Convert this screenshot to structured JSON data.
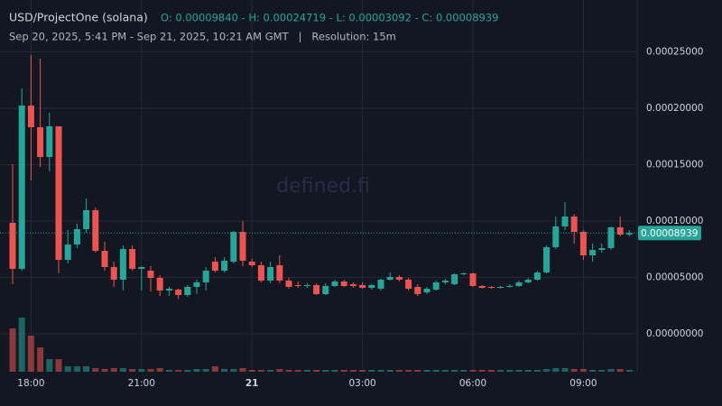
{
  "chart_data": {
    "type": "candlestick",
    "title": "USD/ProjectOne (solana)",
    "summary": "O: 0.00009840 - H: 0.00024719 - L: 0.00003092 - C: 0.00008939",
    "subtitle": "Sep 20, 2025, 5:41 PM - Sep 21, 2025, 10:21 AM GMT   |   Resolution: 15m",
    "watermark": "defined.fi",
    "categories": [
      null,
      null,
      "18:00",
      null,
      null,
      null,
      null,
      null,
      null,
      null,
      null,
      null,
      null,
      null,
      "21:00",
      null,
      null,
      null,
      null,
      null,
      null,
      null,
      null,
      null,
      null,
      null,
      "21",
      null,
      null,
      null,
      null,
      null,
      null,
      null,
      null,
      null,
      null,
      null,
      "03:00",
      null,
      null,
      null,
      null,
      null,
      null,
      null,
      null,
      null,
      null,
      null,
      "06:00",
      null,
      null,
      null,
      null,
      null,
      null,
      null,
      null,
      null,
      null,
      null,
      "09:00",
      null,
      null,
      null,
      null,
      null
    ],
    "open": [
      9.84e-05,
      5.76e-05,
      0.0002024,
      0.0001832,
      0.0001568,
      0.000184,
      6.56e-05,
      7.92e-05,
      9.28e-05,
      0.0001096,
      7.36e-05,
      5.92e-05,
      4.8e-05,
      7.52e-05,
      5.76e-05,
      5.6e-05,
      4.96e-05,
      3.84e-05,
      3.92e-05,
      3.44e-05,
      4.16e-05,
      4.56e-05,
      6.4e-05,
      5.6e-05,
      6.4e-05,
      9.04e-05,
      6.4e-05,
      6.08e-05,
      4.72e-05,
      6.08e-05,
      4.72e-05,
      4.32e-05,
      4.24e-05,
      4.32e-05,
      3.52e-05,
      4.24e-05,
      4.64e-05,
      4.4e-05,
      4.32e-05,
      4.08e-05,
      4e-05,
      4.8e-05,
      5.04e-05,
      4.8e-05,
      4.16e-05,
      3.68e-05,
      3.92e-05,
      4.56e-05,
      4.4e-05,
      5.28e-05,
      5.36e-05,
      4.24e-05,
      4.16e-05,
      4.08e-05,
      4.16e-05,
      4.24e-05,
      4.56e-05,
      4.8e-05,
      5.44e-05,
      7.68e-05,
      9.52e-05,
      0.000104,
      9.04e-05,
      6.96e-05,
      7.44e-05,
      7.6e-05,
      9.44e-05,
      8.8e-05
    ],
    "high": [
      0.0001504,
      0.0002176,
      0.00024719,
      0.000244,
      0.000196,
      0.000184,
      9.2e-05,
      9.76e-05,
      0.00012,
      0.000112,
      8.16e-05,
      6.4e-05,
      7.84e-05,
      7.84e-05,
      6e-05,
      6e-05,
      5.2e-05,
      4.16e-05,
      4e-05,
      4.32e-05,
      4.8e-05,
      5.92e-05,
      6.8e-05,
      6.8e-05,
      9.12e-05,
      0.0001,
      6.64e-05,
      6.4e-05,
      6.4e-05,
      6.96e-05,
      4.96e-05,
      4.64e-05,
      4.48e-05,
      4.48e-05,
      4.48e-05,
      4.8e-05,
      4.8e-05,
      4.56e-05,
      4.56e-05,
      4.4e-05,
      4.88e-05,
      5.44e-05,
      5.2e-05,
      4.96e-05,
      4.4e-05,
      4.16e-05,
      4.72e-05,
      4.88e-05,
      5.36e-05,
      5.44e-05,
      5.44e-05,
      4.32e-05,
      4.24e-05,
      4.24e-05,
      4.4e-05,
      4.72e-05,
      4.96e-05,
      5.6e-05,
      7.84e-05,
      0.000104,
      0.0001168,
      0.0001064,
      9.2e-05,
      8e-05,
      8e-05,
      9.52e-05,
      0.000104,
      9.2e-05
    ],
    "low": [
      4.4e-05,
      5.6e-05,
      0.000136,
      0.000148,
      0.000144,
      5.36e-05,
      6.24e-05,
      7.6e-05,
      8.96e-05,
      7.2e-05,
      5.6e-05,
      4.16e-05,
      3.84e-05,
      5.6e-05,
      3.84e-05,
      3.76e-05,
      3.36e-05,
      3.36e-05,
      3.092e-05,
      3.28e-05,
      3.52e-05,
      3.84e-05,
      5.44e-05,
      5.44e-05,
      6.24e-05,
      6e-05,
      5.92e-05,
      4.56e-05,
      4.48e-05,
      4.48e-05,
      4e-05,
      4.08e-05,
      4.08e-05,
      3.44e-05,
      3.44e-05,
      4.16e-05,
      4.16e-05,
      4.08e-05,
      4e-05,
      3.92e-05,
      3.84e-05,
      4.72e-05,
      4.64e-05,
      3.84e-05,
      3.36e-05,
      3.52e-05,
      3.84e-05,
      4.4e-05,
      4.32e-05,
      5.2e-05,
      4.16e-05,
      4e-05,
      4e-05,
      4e-05,
      4.08e-05,
      4.16e-05,
      4.48e-05,
      4.72e-05,
      5.36e-05,
      7.52e-05,
      9.2e-05,
      8e-05,
      6.56e-05,
      6.4e-05,
      7.2e-05,
      7.44e-05,
      8.64e-05,
      8.64e-05
    ],
    "close": [
      5.76e-05,
      0.0002024,
      0.0001832,
      0.0001568,
      0.000184,
      6.56e-05,
      7.92e-05,
      9.28e-05,
      0.0001096,
      7.36e-05,
      5.92e-05,
      4.8e-05,
      7.52e-05,
      5.76e-05,
      5.92e-05,
      4.96e-05,
      3.84e-05,
      4e-05,
      3.44e-05,
      4.16e-05,
      4.56e-05,
      5.6e-05,
      5.6e-05,
      6.48e-05,
      9.04e-05,
      6.48e-05,
      6.08e-05,
      4.72e-05,
      5.92e-05,
      4.72e-05,
      4.16e-05,
      4.24e-05,
      4.32e-05,
      3.52e-05,
      4.24e-05,
      4.64e-05,
      4.24e-05,
      4.24e-05,
      4.08e-05,
      4.32e-05,
      4.8e-05,
      5.04e-05,
      4.8e-05,
      4e-05,
      3.52e-05,
      4e-05,
      4.56e-05,
      4.72e-05,
      5.28e-05,
      5.36e-05,
      4.24e-05,
      4.08e-05,
      4.08e-05,
      4.16e-05,
      4.24e-05,
      4.56e-05,
      4.8e-05,
      5.44e-05,
      7.68e-05,
      9.52e-05,
      0.000104,
      9.04e-05,
      6.96e-05,
      7.44e-05,
      7.6e-05,
      9.44e-05,
      8.8e-05,
      8.939e-05
    ],
    "volume": [
      48,
      60,
      40,
      27,
      14,
      14,
      6,
      6,
      6,
      4,
      3,
      4,
      4,
      3,
      3,
      3,
      4,
      2,
      2,
      2,
      3,
      3,
      6,
      3,
      3,
      4,
      2,
      2,
      2,
      3,
      2,
      2,
      2,
      2,
      2,
      2,
      2,
      2,
      2,
      2,
      2,
      2,
      2,
      2,
      2,
      2,
      2,
      2,
      2,
      2,
      2,
      2,
      2,
      2,
      2,
      2,
      2,
      2,
      3,
      4,
      4,
      3,
      3,
      2,
      2,
      3,
      3,
      2
    ],
    "ylim": [
      -3.36e-05,
      0.0002896
    ],
    "yticks": [
      {
        "value": 0.00025,
        "label": "0.00025000"
      },
      {
        "value": 0.0002,
        "label": "0.00020000"
      },
      {
        "value": 0.00015,
        "label": "0.00015000"
      },
      {
        "value": 0.0001,
        "label": "0.00010000"
      },
      {
        "value": 5e-05,
        "label": "0.00005000"
      },
      {
        "value": 0,
        "label": "0.00000000"
      }
    ],
    "vlim": [
      0,
      200
    ],
    "up_color": "#26a69a",
    "down_color": "#ef5350",
    "grid": true
  }
}
